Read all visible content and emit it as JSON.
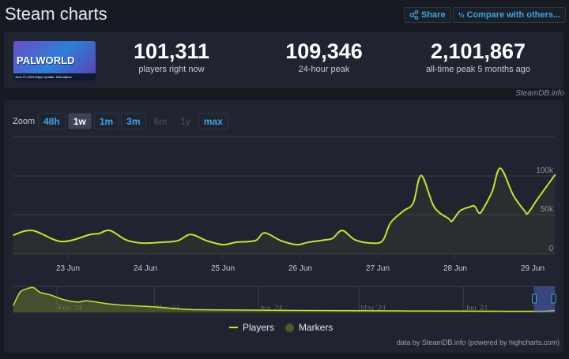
{
  "page": {
    "title": "Steam charts",
    "share_label": "Share",
    "compare_label": "Compare with others...",
    "share_icon": "share-icon",
    "compare_icon": "compare-icon"
  },
  "game": {
    "logo_text": "PALWORLD",
    "banner_text": "June 27,2024 Major Update: Sakurajima"
  },
  "stats": [
    {
      "value": "101,311",
      "label": "players right now"
    },
    {
      "value": "109,346",
      "label": "24-hour peak"
    },
    {
      "value": "2,101,867",
      "label": "all-time peak 5 months ago"
    }
  ],
  "brand": "SteamDB.info",
  "zoom": {
    "label": "Zoom",
    "buttons": [
      {
        "label": "48h",
        "state": "enabled"
      },
      {
        "label": "1w",
        "state": "active"
      },
      {
        "label": "1m",
        "state": "enabled"
      },
      {
        "label": "3m",
        "state": "enabled"
      },
      {
        "label": "6m",
        "state": "disabled"
      },
      {
        "label": "1y",
        "state": "disabled"
      },
      {
        "label": "max",
        "state": "enabled"
      }
    ]
  },
  "legend": {
    "players": "Players",
    "markers": "Markers"
  },
  "credit": "data by SteamDB.info (powered by highcharts.com)",
  "colors": {
    "line": "#c4e52c",
    "marker": "#4d5a2a",
    "accent": "#3ea5e6"
  },
  "chart_data": {
    "type": "line",
    "y_ticks": [
      "0",
      "50k",
      "100k"
    ],
    "ylim": [
      0,
      150000
    ],
    "x_ticks": [
      "23 Jun",
      "24 Jun",
      "25 Jun",
      "26 Jun",
      "27 Jun",
      "28 Jun",
      "29 Jun"
    ],
    "grid": true,
    "legend_placement": "bottom",
    "series": [
      {
        "name": "Players",
        "points": [
          [
            "2024-06-22T07:00",
            24000
          ],
          [
            "2024-06-22T13:00",
            30000
          ],
          [
            "2024-06-22T22:00",
            16000
          ],
          [
            "2024-06-23T07:00",
            25000
          ],
          [
            "2024-06-23T09:30",
            26000
          ],
          [
            "2024-06-23T13:00",
            30000
          ],
          [
            "2024-06-23T18:00",
            18000
          ],
          [
            "2024-06-23T23:00",
            14000
          ],
          [
            "2024-06-24T05:00",
            15000
          ],
          [
            "2024-06-24T10:00",
            17000
          ],
          [
            "2024-06-24T14:00",
            25000
          ],
          [
            "2024-06-24T19:00",
            17000
          ],
          [
            "2024-06-25T00:00",
            12000
          ],
          [
            "2024-06-25T04:00",
            15000
          ],
          [
            "2024-06-25T08:00",
            16000
          ],
          [
            "2024-06-25T10:30",
            18000
          ],
          [
            "2024-06-25T13:00",
            27000
          ],
          [
            "2024-06-25T18:00",
            17000
          ],
          [
            "2024-06-25T23:00",
            12000
          ],
          [
            "2024-06-26T02:30",
            15000
          ],
          [
            "2024-06-26T07:30",
            18000
          ],
          [
            "2024-06-26T10:00",
            20000
          ],
          [
            "2024-06-26T13:00",
            30000
          ],
          [
            "2024-06-26T17:00",
            18000
          ],
          [
            "2024-06-26T22:00",
            14000
          ],
          [
            "2024-06-27T01:30",
            17000
          ],
          [
            "2024-06-27T04:00",
            40000
          ],
          [
            "2024-06-27T08:00",
            55000
          ],
          [
            "2024-06-27T11:00",
            65000
          ],
          [
            "2024-06-27T13:30",
            100000
          ],
          [
            "2024-06-27T17:30",
            60000
          ],
          [
            "2024-06-27T22:00",
            45000
          ],
          [
            "2024-06-27T23:00",
            42000
          ],
          [
            "2024-06-28T01:30",
            55000
          ],
          [
            "2024-06-28T04:30",
            60000
          ],
          [
            "2024-06-28T06:00",
            61000
          ],
          [
            "2024-06-28T07:30",
            52000
          ],
          [
            "2024-06-28T09:00",
            60000
          ],
          [
            "2024-06-28T11:30",
            80000
          ],
          [
            "2024-06-28T14:00",
            109346
          ],
          [
            "2024-06-28T18:00",
            75000
          ],
          [
            "2024-06-28T21:30",
            55000
          ],
          [
            "2024-06-28T22:30",
            52000
          ],
          [
            "2024-06-29T01:30",
            70000
          ],
          [
            "2024-06-29T07:00",
            101311
          ]
        ]
      }
    ],
    "navigator": {
      "x_ticks": [
        "Feb '24",
        "Mar '24",
        "Apr '24",
        "May '24",
        "Jun '24"
      ],
      "selected_range": [
        "2024-06-22",
        "2024-06-29"
      ],
      "points": [
        [
          "2024-01-19",
          500000
        ],
        [
          "2024-01-21",
          1600000
        ],
        [
          "2024-01-23",
          1900000
        ],
        [
          "2024-01-25",
          2000000
        ],
        [
          "2024-01-27",
          1600000
        ],
        [
          "2024-01-30",
          1400000
        ],
        [
          "2024-02-03",
          1000000
        ],
        [
          "2024-02-07",
          800000
        ],
        [
          "2024-02-10",
          900000
        ],
        [
          "2024-02-15",
          700000
        ],
        [
          "2024-02-20",
          550000
        ],
        [
          "2024-03-01",
          400000
        ],
        [
          "2024-03-10",
          200000
        ],
        [
          "2024-03-20",
          150000
        ],
        [
          "2024-04-01",
          120000
        ],
        [
          "2024-04-15",
          100000
        ],
        [
          "2024-05-01",
          80000
        ],
        [
          "2024-05-15",
          60000
        ],
        [
          "2024-06-01",
          50000
        ],
        [
          "2024-06-22",
          30000
        ],
        [
          "2024-06-29",
          100000
        ]
      ]
    }
  }
}
